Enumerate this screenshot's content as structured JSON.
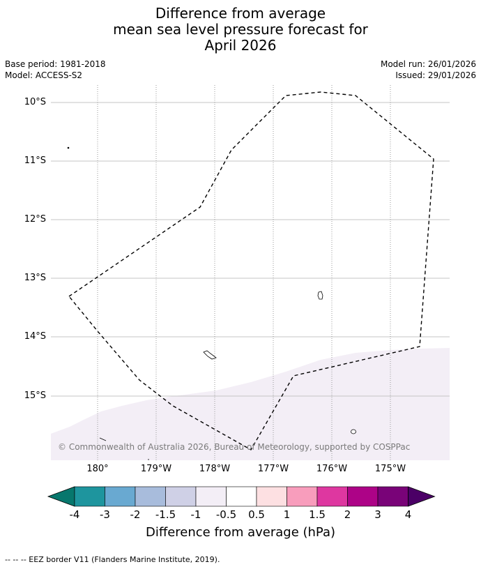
{
  "title": {
    "line1": "Difference from average",
    "line2": "mean sea level pressure forecast for",
    "line3": "April 2026"
  },
  "meta": {
    "base_period": "Base period: 1981-2018",
    "model": "Model: ACCESS-S2",
    "model_run": "Model run: 26/01/2026",
    "issued": "Issued: 29/01/2026"
  },
  "map": {
    "lat_labels": [
      "10°S",
      "11°S",
      "12°S",
      "13°S",
      "14°S",
      "15°S"
    ],
    "lon_labels": [
      "180°",
      "179°W",
      "178°W",
      "177°W",
      "176°W",
      "175°W"
    ],
    "copyright": "© Commonwealth of Australia 2026, Bureau of Meteorology, supported by COSPPac",
    "land_color": "#ffffff",
    "anomaly_fill_color": "#f3eef6"
  },
  "colorbar": {
    "title": "Difference from average (hPa)",
    "tick_labels": [
      "-4",
      "-3",
      "-2",
      "-1.5",
      "-1",
      "-0.5",
      "0.5",
      "1",
      "1.5",
      "2",
      "3",
      "4"
    ],
    "colors": [
      "#07776d",
      "#1e959e",
      "#69a9d1",
      "#a8bcdc",
      "#cfd0e6",
      "#f3eef6",
      "#ffffff",
      "#fde0e2",
      "#f89dbc",
      "#de37a0",
      "#ad0387",
      "#790378",
      "#4b0066"
    ]
  },
  "footnote": "--  --  -- EEZ border V11 (Flanders Marine Institute, 2019)."
}
